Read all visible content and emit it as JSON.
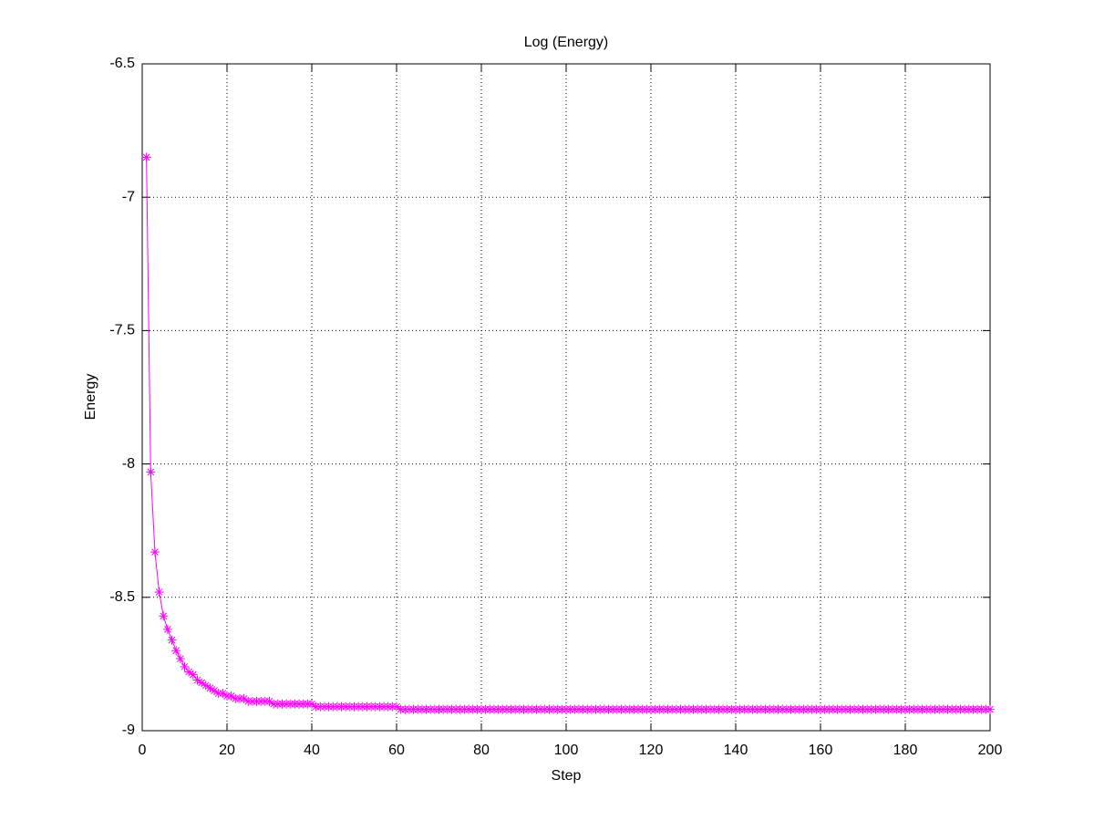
{
  "chart_data": {
    "type": "line",
    "title": "Log (Energy)",
    "x_label": "Step",
    "y_label": "Energy",
    "x": [
      1,
      2,
      3,
      4,
      5,
      6,
      7,
      8,
      9,
      10,
      11,
      12,
      13,
      14,
      15,
      16,
      17,
      18,
      19,
      20,
      21,
      22,
      23,
      24,
      25,
      26,
      27,
      28,
      29,
      30,
      31,
      32,
      33,
      34,
      35,
      36,
      37,
      38,
      39,
      40,
      41,
      42,
      43,
      44,
      45,
      46,
      47,
      48,
      49,
      50,
      51,
      52,
      53,
      54,
      55,
      56,
      57,
      58,
      59,
      60,
      61,
      62,
      63,
      64,
      65,
      66,
      67,
      68,
      69,
      70,
      71,
      72,
      73,
      74,
      75,
      76,
      77,
      78,
      79,
      80,
      81,
      82,
      83,
      84,
      85,
      86,
      87,
      88,
      89,
      90,
      91,
      92,
      93,
      94,
      95,
      96,
      97,
      98,
      99,
      100,
      101,
      102,
      103,
      104,
      105,
      106,
      107,
      108,
      109,
      110,
      111,
      112,
      113,
      114,
      115,
      116,
      117,
      118,
      119,
      120,
      121,
      122,
      123,
      124,
      125,
      126,
      127,
      128,
      129,
      130,
      131,
      132,
      133,
      134,
      135,
      136,
      137,
      138,
      139,
      140,
      141,
      142,
      143,
      144,
      145,
      146,
      147,
      148,
      149,
      150,
      151,
      152,
      153,
      154,
      155,
      156,
      157,
      158,
      159,
      160,
      161,
      162,
      163,
      164,
      165,
      166,
      167,
      168,
      169,
      170,
      171,
      172,
      173,
      174,
      175,
      176,
      177,
      178,
      179,
      180,
      181,
      182,
      183,
      184,
      185,
      186,
      187,
      188,
      189,
      190,
      191,
      192,
      193,
      194,
      195,
      196,
      197,
      198,
      199,
      200
    ],
    "series": [
      {
        "color": "#ff00ff",
        "values": [
          -6.85,
          -8.03,
          -8.33,
          -8.48,
          -8.57,
          -8.62,
          -8.66,
          -8.7,
          -8.73,
          -8.76,
          -8.78,
          -8.79,
          -8.81,
          -8.82,
          -8.83,
          -8.84,
          -8.85,
          -8.86,
          -8.86,
          -8.87,
          -8.87,
          -8.88,
          -8.88,
          -8.88,
          -8.89,
          -8.89,
          -8.89,
          -8.89,
          -8.89,
          -8.89,
          -8.9,
          -8.9,
          -8.9,
          -8.9,
          -8.9,
          -8.9,
          -8.9,
          -8.9,
          -8.9,
          -8.9,
          -8.91,
          -8.91,
          -8.91,
          -8.91,
          -8.91,
          -8.91,
          -8.91,
          -8.91,
          -8.91,
          -8.91,
          -8.91,
          -8.91,
          -8.91,
          -8.91,
          -8.91,
          -8.91,
          -8.91,
          -8.91,
          -8.91,
          -8.91,
          -8.92,
          -8.92,
          -8.92,
          -8.92,
          -8.92,
          -8.92,
          -8.92,
          -8.92,
          -8.92,
          -8.92,
          -8.92,
          -8.92,
          -8.92,
          -8.92,
          -8.92,
          -8.92,
          -8.92,
          -8.92,
          -8.92,
          -8.92,
          -8.92,
          -8.92,
          -8.92,
          -8.92,
          -8.92,
          -8.92,
          -8.92,
          -8.92,
          -8.92,
          -8.92,
          -8.92,
          -8.92,
          -8.92,
          -8.92,
          -8.92,
          -8.92,
          -8.92,
          -8.92,
          -8.92,
          -8.92,
          -8.92,
          -8.92,
          -8.92,
          -8.92,
          -8.92,
          -8.92,
          -8.92,
          -8.92,
          -8.92,
          -8.92,
          -8.92,
          -8.92,
          -8.92,
          -8.92,
          -8.92,
          -8.92,
          -8.92,
          -8.92,
          -8.92,
          -8.92,
          -8.92,
          -8.92,
          -8.92,
          -8.92,
          -8.92,
          -8.92,
          -8.92,
          -8.92,
          -8.92,
          -8.92,
          -8.92,
          -8.92,
          -8.92,
          -8.92,
          -8.92,
          -8.92,
          -8.92,
          -8.92,
          -8.92,
          -8.92,
          -8.92,
          -8.92,
          -8.92,
          -8.92,
          -8.92,
          -8.92,
          -8.92,
          -8.92,
          -8.92,
          -8.92,
          -8.92,
          -8.92,
          -8.92,
          -8.92,
          -8.92,
          -8.92,
          -8.92,
          -8.92,
          -8.92,
          -8.92,
          -8.92,
          -8.92,
          -8.92,
          -8.92,
          -8.92,
          -8.92,
          -8.92,
          -8.92,
          -8.92,
          -8.92,
          -8.92,
          -8.92,
          -8.92,
          -8.92,
          -8.92,
          -8.92,
          -8.92,
          -8.92,
          -8.92,
          -8.92,
          -8.92,
          -8.92,
          -8.92,
          -8.92,
          -8.92,
          -8.92,
          -8.92,
          -8.92,
          -8.92,
          -8.92,
          -8.92,
          -8.92,
          -8.92,
          -8.92,
          -8.92,
          -8.92,
          -8.92,
          -8.92,
          -8.92,
          -8.92
        ]
      }
    ],
    "xlim": [
      0,
      200
    ],
    "xticks": [
      0,
      20,
      40,
      60,
      80,
      100,
      120,
      140,
      160,
      180,
      200
    ],
    "ylim": [
      -9,
      -6.5
    ],
    "yticks": [
      -9,
      -8.5,
      -8,
      -7.5,
      -7,
      -6.5
    ],
    "grid": true
  }
}
